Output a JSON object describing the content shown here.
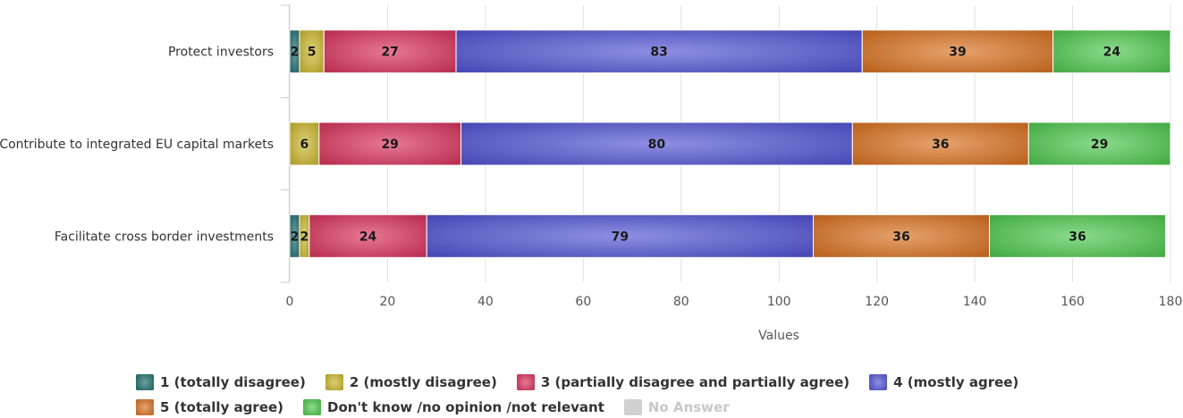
{
  "chart_data": {
    "type": "bar",
    "orientation": "horizontal",
    "stacked": true,
    "categories": [
      "Protect investors",
      "Contribute to integrated EU capital markets",
      "Facilitate cross border investments"
    ],
    "series": [
      {
        "name": "1 (totally disagree)",
        "color": "#1f6b6b",
        "values": [
          2,
          0,
          2
        ]
      },
      {
        "name": "2 (mostly disagree)",
        "color": "#c9b52a",
        "values": [
          5,
          6,
          2
        ]
      },
      {
        "name": "3 (partially disagree and partially agree)",
        "color": "#d8315b",
        "values": [
          27,
          29,
          24
        ]
      },
      {
        "name": "4 (mostly agree)",
        "color": "#5152d3",
        "values": [
          83,
          80,
          79
        ]
      },
      {
        "name": "5 (totally agree)",
        "color": "#d8701f",
        "values": [
          39,
          36,
          36
        ]
      },
      {
        "name": "Don't know /no opinion /not relevant",
        "color": "#4cc74c",
        "values": [
          24,
          29,
          36
        ]
      },
      {
        "name": "No Answer",
        "color": "#d0d0d0",
        "values": [
          0,
          0,
          0
        ],
        "inactive": true
      }
    ],
    "xlabel": "Values",
    "ylabel": "",
    "xlim": [
      0,
      180
    ],
    "xticks": [
      0,
      20,
      40,
      60,
      80,
      100,
      120,
      140,
      160,
      180
    ],
    "grid": true,
    "legend_position": "bottom"
  }
}
